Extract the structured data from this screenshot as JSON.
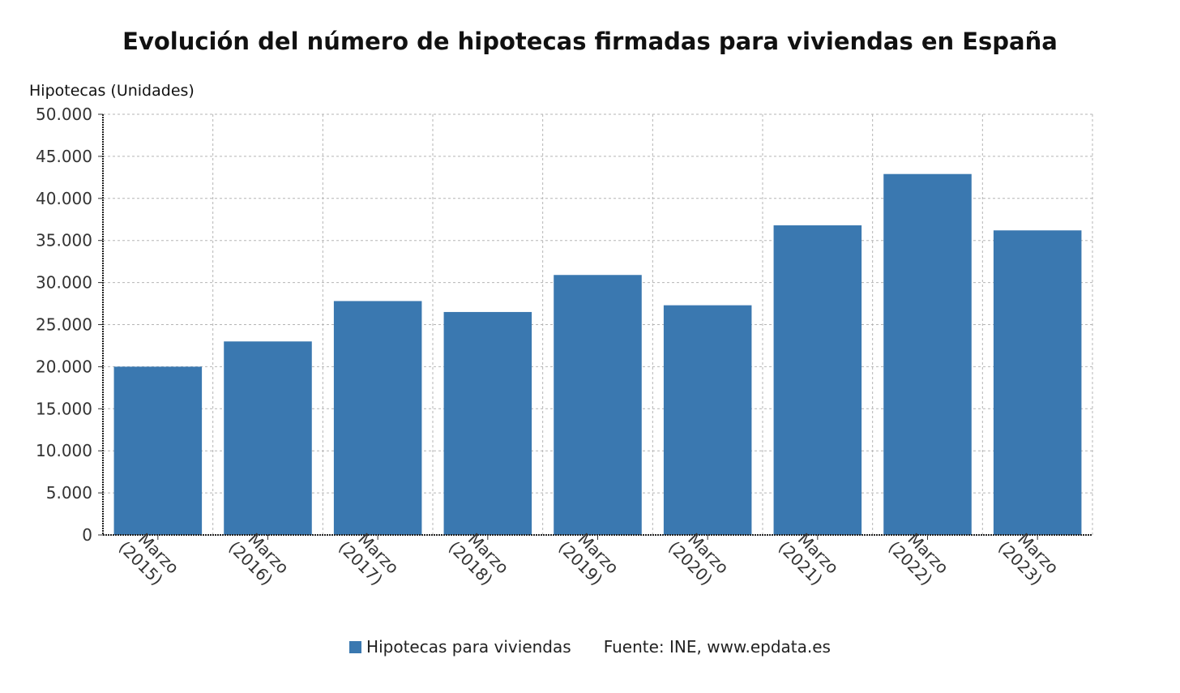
{
  "chart_data": {
    "type": "bar",
    "title": "Evolución del número de hipotecas firmadas para viviendas en España",
    "ylabel": "Hipotecas (Unidades)",
    "xlabel": "",
    "categories": [
      [
        "Marzo",
        "(2015)"
      ],
      [
        "Marzo",
        "(2016)"
      ],
      [
        "Marzo",
        "(2017)"
      ],
      [
        "Marzo",
        "(2018)"
      ],
      [
        "Marzo",
        "(2019)"
      ],
      [
        "Marzo",
        "(2020)"
      ],
      [
        "Marzo",
        "(2021)"
      ],
      [
        "Marzo",
        "(2022)"
      ],
      [
        "Marzo",
        "(2023)"
      ]
    ],
    "series": [
      {
        "name": "Hipotecas para viviendas",
        "color": "#3a78b0",
        "values": [
          20000,
          23000,
          27800,
          26500,
          30900,
          27300,
          36800,
          42900,
          36200
        ]
      }
    ],
    "ylim": [
      0,
      50000
    ],
    "yticks": [
      "0",
      "5.000",
      "10.000",
      "15.000",
      "20.000",
      "25.000",
      "30.000",
      "35.000",
      "40.000",
      "45.000",
      "50.000"
    ],
    "ytick_values": [
      0,
      5000,
      10000,
      15000,
      20000,
      25000,
      30000,
      35000,
      40000,
      45000,
      50000
    ],
    "grid": true,
    "legend_position": "bottom-center"
  },
  "legend": {
    "series_label": "Hipotecas para viviendas",
    "source_label": "Fuente: INE, ",
    "source_url": "www.epdata.es"
  }
}
